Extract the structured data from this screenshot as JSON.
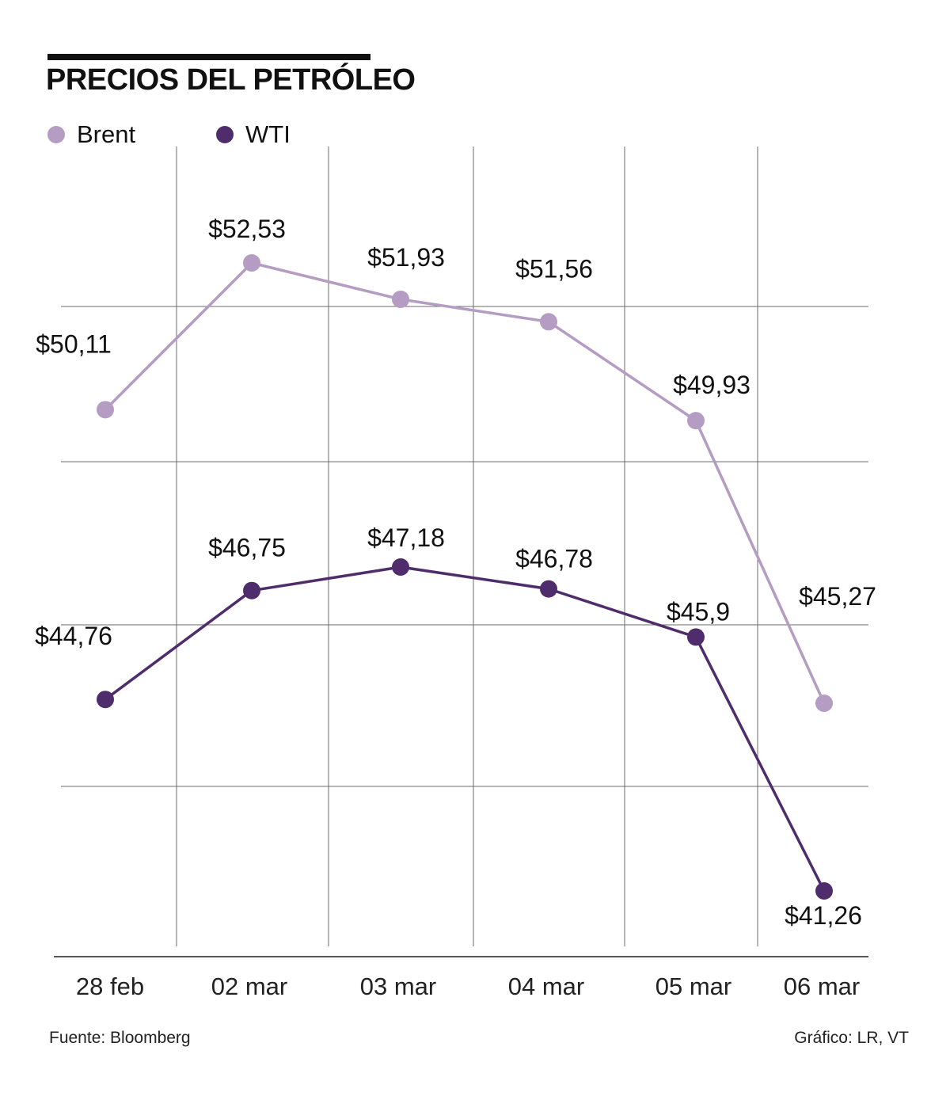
{
  "chart_data": {
    "type": "line",
    "title": "PRECIOS DEL PETRÓLEO",
    "categories": [
      "28 feb",
      "02 mar",
      "03 mar",
      "04 mar",
      "05 mar",
      "06 mar"
    ],
    "series": [
      {
        "name": "Brent",
        "color": "#b49cc2",
        "values": [
          50.11,
          52.53,
          51.93,
          51.56,
          49.93,
          45.27
        ],
        "labels": [
          "$50,11",
          "$52,53",
          "$51,93",
          "$51,56",
          "$49,93",
          "$45,27"
        ]
      },
      {
        "name": "WTI",
        "color": "#4f2c6b",
        "values": [
          44.76,
          46.75,
          47.18,
          46.78,
          45.9,
          41.26
        ],
        "labels": [
          "$44,76",
          "$46,75",
          "$47,18",
          "$46,78",
          "$45,9",
          "$41,26"
        ]
      }
    ],
    "xlabel": "",
    "ylabel": "",
    "grid": true,
    "legend": "top-left"
  },
  "footer": {
    "source": "Fuente: Bloomberg",
    "credit": "Gráfico: LR, VT"
  }
}
